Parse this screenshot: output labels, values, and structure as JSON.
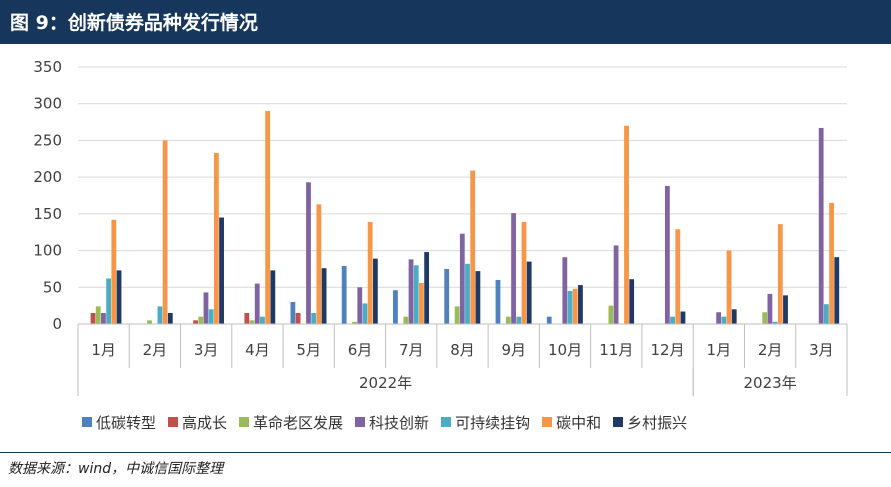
{
  "header": {
    "title": "图 9：创新债券品种发行情况"
  },
  "footer": {
    "source": "数据来源：wind，中诚信国际整理"
  },
  "chart_data": {
    "type": "bar",
    "title": "",
    "xlabel": "",
    "ylabel": "",
    "ylim": [
      0,
      350
    ],
    "yticks": [
      0,
      50,
      100,
      150,
      200,
      250,
      300,
      350
    ],
    "grid": true,
    "legend_position": "bottom",
    "categories": [
      "1月",
      "2月",
      "3月",
      "4月",
      "5月",
      "6月",
      "7月",
      "8月",
      "9月",
      "10月",
      "11月",
      "12月",
      "1月",
      "2月",
      "3月"
    ],
    "groups": [
      {
        "label": "2022年",
        "span": 12
      },
      {
        "label": "2023年",
        "span": 3
      }
    ],
    "series": [
      {
        "name": "低碳转型",
        "color": "#4f81bd",
        "values": [
          0,
          0,
          0,
          0,
          30,
          79,
          46,
          75,
          60,
          10,
          0,
          0,
          0,
          0,
          0
        ]
      },
      {
        "name": "高成长",
        "color": "#c0504d",
        "values": [
          15,
          0,
          5,
          15,
          15,
          0,
          0,
          0,
          0,
          0,
          0,
          0,
          0,
          0,
          0
        ]
      },
      {
        "name": "革命老区发展",
        "color": "#9bbb59",
        "values": [
          24,
          5,
          10,
          5,
          0,
          3,
          10,
          24,
          10,
          0,
          25,
          0,
          0,
          16,
          0
        ]
      },
      {
        "name": "科技创新",
        "color": "#8064a2",
        "values": [
          15,
          0,
          43,
          55,
          193,
          50,
          88,
          123,
          151,
          91,
          107,
          188,
          16,
          41,
          267
        ]
      },
      {
        "name": "可持续挂钩",
        "color": "#4bacc6",
        "values": [
          62,
          24,
          20,
          10,
          15,
          28,
          80,
          82,
          10,
          45,
          0,
          10,
          10,
          3,
          27
        ]
      },
      {
        "name": "碳中和",
        "color": "#f79646",
        "values": [
          142,
          250,
          233,
          290,
          163,
          139,
          56,
          209,
          139,
          48,
          270,
          129,
          100,
          136,
          165
        ]
      },
      {
        "name": "乡村振兴",
        "color": "#1f3864",
        "values": [
          73,
          15,
          145,
          73,
          76,
          89,
          98,
          72,
          85,
          53,
          61,
          17,
          20,
          39,
          91
        ]
      }
    ]
  }
}
